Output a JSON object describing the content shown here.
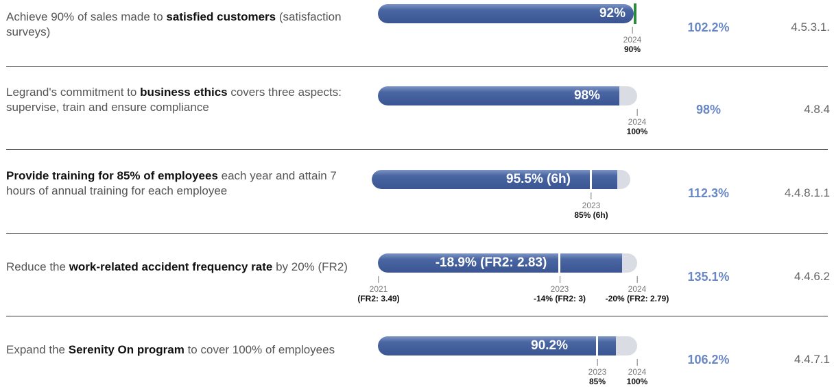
{
  "rows": [
    {
      "description": [
        {
          "text": "Achieve 90% of sales made to ",
          "bold": false
        },
        {
          "text": "satisfied customers",
          "bold": true
        },
        {
          "text": " (satisfaction surveys)",
          "bold": false
        }
      ],
      "result": "92%",
      "milestones": [
        {
          "year": "2024",
          "label": "90%"
        }
      ],
      "rate": "102.2%",
      "reference": "4.5.3.1."
    },
    {
      "description": [
        {
          "text": "Legrand's commitment to ",
          "bold": false
        },
        {
          "text": "business ethics",
          "bold": true
        },
        {
          "text": " covers three aspects: supervise, train and ensure compliance",
          "bold": false
        }
      ],
      "result": "98%",
      "milestones": [
        {
          "year": "2024",
          "label": "100%"
        }
      ],
      "rate": "98%",
      "reference": "4.8.4"
    },
    {
      "description": [
        {
          "text": "Provide training for 85% of employees",
          "bold": true
        },
        {
          "text": " each year and attain 7 hours of annual training for each employee",
          "bold": false
        }
      ],
      "result": "95.5% (6h)",
      "milestones": [
        {
          "year": "2023",
          "label": "85% (6h)"
        }
      ],
      "rate": "112.3%",
      "reference": "4.4.8.1.1"
    },
    {
      "description": [
        {
          "text": "Reduce the ",
          "bold": false
        },
        {
          "text": "work-related accident frequency rate",
          "bold": true
        },
        {
          "text": " by 20% (FR2)",
          "bold": false
        }
      ],
      "result": "-18.9% (FR2: 2.83)",
      "milestones": [
        {
          "year": "2021",
          "label": "(FR2: 3.49)"
        },
        {
          "year": "2023",
          "label": "-14% (FR2: 3)"
        },
        {
          "year": "2024",
          "label": "-20% (FR2: 2.79)"
        }
      ],
      "rate": "135.1%",
      "reference": "4.4.6.2"
    },
    {
      "description": [
        {
          "text": "Expand the ",
          "bold": false
        },
        {
          "text": "Serenity On program",
          "bold": true
        },
        {
          "text": " to cover 100% of employees",
          "bold": false
        }
      ],
      "result": "90.2%",
      "milestones": [
        {
          "year": "2023",
          "label": "85%"
        },
        {
          "year": "2024",
          "label": "100%"
        }
      ],
      "rate": "106.2%",
      "reference": "4.4.7.1"
    }
  ]
}
